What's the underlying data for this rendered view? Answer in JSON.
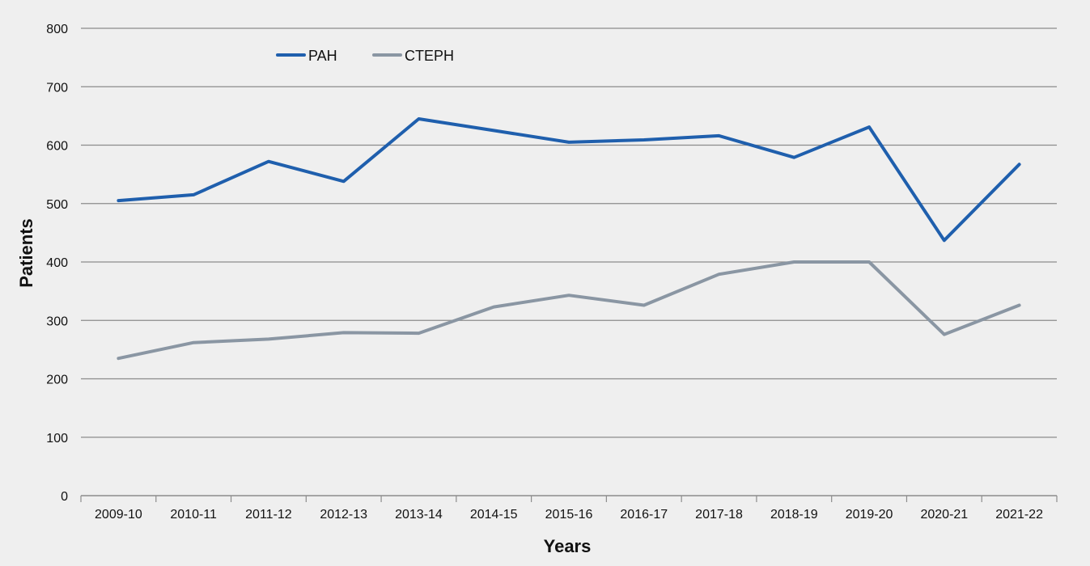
{
  "chart_data": {
    "type": "line",
    "title": "",
    "xlabel": "Years",
    "ylabel": "Patients",
    "ylim": [
      0,
      800
    ],
    "yticks": [
      0,
      100,
      200,
      300,
      400,
      500,
      600,
      700,
      800
    ],
    "grid": true,
    "legend_position": "top-left",
    "categories": [
      "2009-10",
      "2010-11",
      "2011-12",
      "2012-13",
      "2013-14",
      "2014-15",
      "2015-16",
      "2016-17",
      "2017-18",
      "2018-19",
      "2019-20",
      "2020-21",
      "2021-22"
    ],
    "series": [
      {
        "name": "PAH",
        "color": "#1f5fad",
        "values": [
          505,
          515,
          572,
          538,
          645,
          625,
          605,
          609,
          616,
          579,
          631,
          437,
          567
        ]
      },
      {
        "name": "CTEPH",
        "color": "#8a96a3",
        "values": [
          235,
          262,
          268,
          279,
          278,
          323,
          343,
          326,
          379,
          400,
          400,
          276,
          326
        ]
      }
    ]
  }
}
